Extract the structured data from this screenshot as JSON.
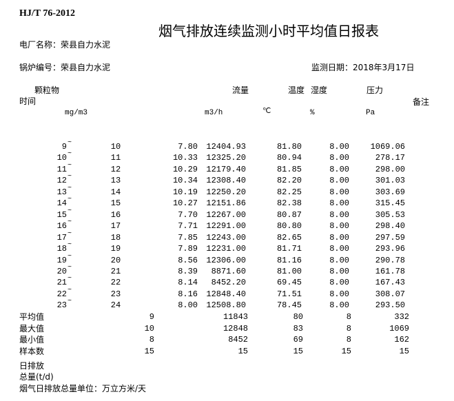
{
  "header": {
    "standard": "HJ/T 76-2012",
    "title": "烟气排放连续监测小时平均值日报表",
    "plant_label": "电厂名称：荣县自力水泥",
    "boiler_label": "锅炉编号：荣县自力水泥",
    "date_label": "监测日期：2018年3月17日"
  },
  "columns": {
    "pm": "颗粒物",
    "time": "时间",
    "flow": "流量",
    "temp": "温度",
    "humid": "湿度",
    "pressure": "压力",
    "remark": "备注",
    "pm_unit": "mg/m3",
    "flow_unit": "m3/h",
    "temp_unit": "℃",
    "humid_unit": "%",
    "pressure_unit": "Pa"
  },
  "rows": [
    {
      "start": "9",
      "sep": "~",
      "end": "10",
      "pm": "7.80",
      "flow": "12404.93",
      "temp": "81.80",
      "humid": "8.00",
      "pressure": "1069.06"
    },
    {
      "start": "10",
      "sep": "~",
      "end": "11",
      "pm": "10.33",
      "flow": "12325.20",
      "temp": "80.94",
      "humid": "8.00",
      "pressure": "278.17"
    },
    {
      "start": "11",
      "sep": "~",
      "end": "12",
      "pm": "10.29",
      "flow": "12179.40",
      "temp": "81.85",
      "humid": "8.00",
      "pressure": "298.00"
    },
    {
      "start": "12",
      "sep": "~",
      "end": "13",
      "pm": "10.34",
      "flow": "12308.40",
      "temp": "82.20",
      "humid": "8.00",
      "pressure": "301.03"
    },
    {
      "start": "13",
      "sep": "~",
      "end": "14",
      "pm": "10.19",
      "flow": "12250.20",
      "temp": "82.25",
      "humid": "8.00",
      "pressure": "303.69"
    },
    {
      "start": "14",
      "sep": "~",
      "end": "15",
      "pm": "10.27",
      "flow": "12151.86",
      "temp": "82.38",
      "humid": "8.00",
      "pressure": "315.45"
    },
    {
      "start": "15",
      "sep": "~",
      "end": "16",
      "pm": "7.70",
      "flow": "12267.00",
      "temp": "80.87",
      "humid": "8.00",
      "pressure": "305.53"
    },
    {
      "start": "16",
      "sep": "~",
      "end": "17",
      "pm": "7.71",
      "flow": "12291.00",
      "temp": "80.80",
      "humid": "8.00",
      "pressure": "298.40"
    },
    {
      "start": "17",
      "sep": "~",
      "end": "18",
      "pm": "7.85",
      "flow": "12243.00",
      "temp": "82.65",
      "humid": "8.00",
      "pressure": "297.59"
    },
    {
      "start": "18",
      "sep": "~",
      "end": "19",
      "pm": "7.89",
      "flow": "12231.00",
      "temp": "81.71",
      "humid": "8.00",
      "pressure": "293.96"
    },
    {
      "start": "19",
      "sep": "~",
      "end": "20",
      "pm": "8.56",
      "flow": "12306.00",
      "temp": "81.16",
      "humid": "8.00",
      "pressure": "290.78"
    },
    {
      "start": "20",
      "sep": "~",
      "end": "21",
      "pm": "8.39",
      "flow": "8871.60",
      "temp": "81.00",
      "humid": "8.00",
      "pressure": "161.78"
    },
    {
      "start": "21",
      "sep": "~",
      "end": "22",
      "pm": "8.14",
      "flow": "8452.20",
      "temp": "69.45",
      "humid": "8.00",
      "pressure": "167.43"
    },
    {
      "start": "22",
      "sep": "~",
      "end": "23",
      "pm": "8.16",
      "flow": "12848.40",
      "temp": "71.51",
      "humid": "8.00",
      "pressure": "308.07"
    },
    {
      "start": "23",
      "sep": "~",
      "end": "24",
      "pm": "8.00",
      "flow": "12508.80",
      "temp": "78.45",
      "humid": "8.00",
      "pressure": "293.50"
    }
  ],
  "summary": [
    {
      "label": "平均值",
      "pm": "9",
      "flow": "11843",
      "temp": "80",
      "humid": "8",
      "pressure": "332"
    },
    {
      "label": "最大值",
      "pm": "10",
      "flow": "12848",
      "temp": "83",
      "humid": "8",
      "pressure": "1069"
    },
    {
      "label": "最小值",
      "pm": "8",
      "flow": "8452",
      "temp": "69",
      "humid": "8",
      "pressure": "162"
    },
    {
      "label": "样本数",
      "pm": "15",
      "flow": "15",
      "temp": "15",
      "humid": "15",
      "pressure": "15"
    }
  ],
  "footer": {
    "daily_total_line1": "日排放",
    "daily_total_line2": "总量(t/d)",
    "unit_note": "烟气日排放总量单位：万立方米/天"
  }
}
